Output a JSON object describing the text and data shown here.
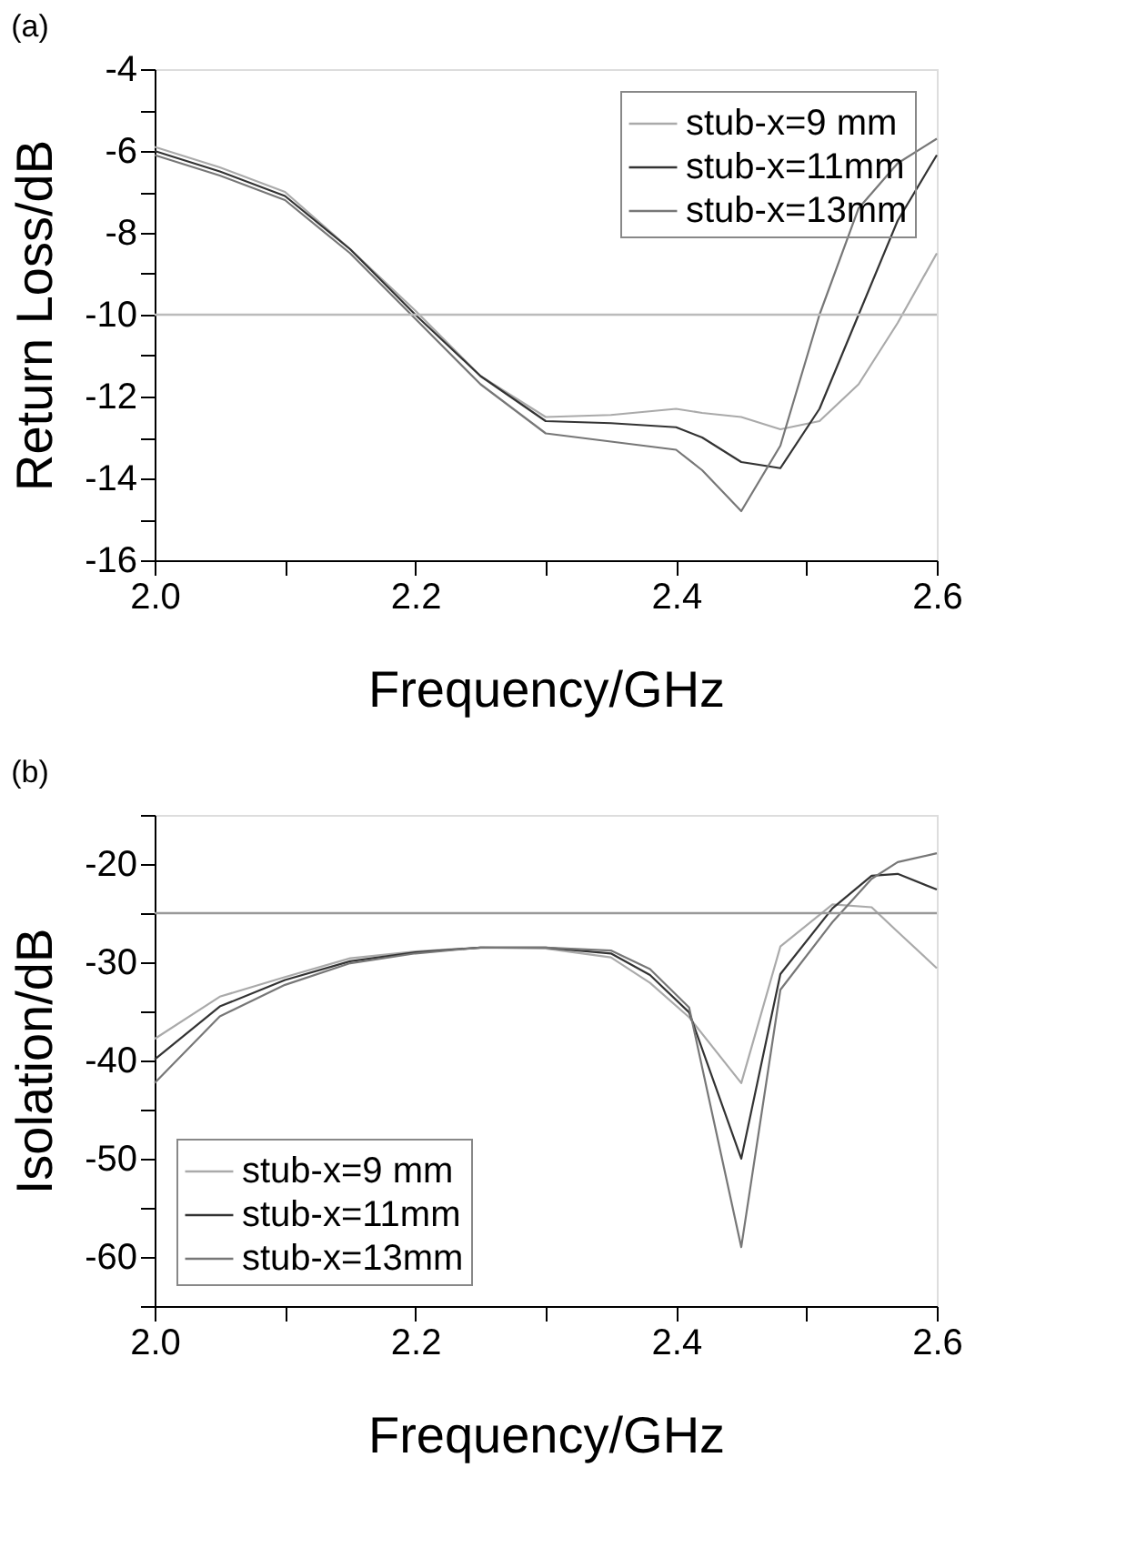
{
  "chart_data": [
    {
      "type": "line",
      "title": "(a)",
      "xlabel": "Frequency/GHz",
      "ylabel": "Return Loss/dB",
      "x": [
        2.0,
        2.05,
        2.1,
        2.15,
        2.2,
        2.25,
        2.3,
        2.35,
        2.4,
        2.42,
        2.45,
        2.48,
        2.51,
        2.54,
        2.57,
        2.6
      ],
      "series": [
        {
          "name": "stub-x=9 mm",
          "color": "#aaaaaa",
          "values": [
            -5.9,
            -6.4,
            -7.0,
            -8.4,
            -9.9,
            -11.5,
            -12.5,
            -12.45,
            -12.3,
            -12.4,
            -12.5,
            -12.8,
            -12.6,
            -11.7,
            -10.2,
            -8.5
          ]
        },
        {
          "name": "stub-x=11mm",
          "color": "#333333",
          "values": [
            -6.0,
            -6.5,
            -7.1,
            -8.4,
            -10.0,
            -11.5,
            -12.6,
            -12.65,
            -12.75,
            -13.0,
            -13.6,
            -13.75,
            -12.3,
            -10.0,
            -7.7,
            -6.1
          ]
        },
        {
          "name": "stub-x=13mm",
          "color": "#777777",
          "values": [
            -6.1,
            -6.6,
            -7.2,
            -8.5,
            -10.1,
            -11.7,
            -12.9,
            -13.1,
            -13.3,
            -13.8,
            -14.8,
            -13.2,
            -10.0,
            -7.4,
            -6.3,
            -5.7
          ]
        }
      ],
      "xlim": [
        2.0,
        2.6
      ],
      "xticks": [
        {
          "value": 2.0,
          "label": "2.0"
        },
        {
          "value": 2.1,
          "label": null
        },
        {
          "value": 2.2,
          "label": "2.2"
        },
        {
          "value": 2.3,
          "label": null
        },
        {
          "value": 2.4,
          "label": "2.4"
        },
        {
          "value": 2.5,
          "label": null
        },
        {
          "value": 2.6,
          "label": "2.6"
        }
      ],
      "ylim": [
        -16,
        -4
      ],
      "yticks": [
        -16,
        {
          "value": -15,
          "label": null
        },
        -14,
        {
          "value": -13,
          "label": null
        },
        -12,
        {
          "value": -11,
          "label": null
        },
        -10,
        {
          "value": -9,
          "label": null
        },
        -8,
        {
          "value": -7,
          "label": null
        },
        -6,
        {
          "value": -5,
          "label": null
        },
        -4
      ],
      "ref_lines": [
        {
          "axis": "y",
          "value": -10,
          "color": "#bbbbbb"
        }
      ],
      "grid": false,
      "legend": "top right",
      "marker": "none",
      "line_style": "solid"
    },
    {
      "type": "line",
      "title": "(b)",
      "xlabel": "Frequency/GHz",
      "ylabel": "Isolation/dB",
      "x": [
        2.0,
        2.05,
        2.1,
        2.15,
        2.2,
        2.25,
        2.3,
        2.35,
        2.38,
        2.41,
        2.45,
        2.48,
        2.52,
        2.55,
        2.57,
        2.6
      ],
      "series": [
        {
          "name": "stub-x=9 mm",
          "color": "#aaaaaa",
          "values": [
            -37.8,
            -33.5,
            -31.5,
            -29.6,
            -28.9,
            -28.5,
            -28.6,
            -29.5,
            -32.1,
            -35.6,
            -42.3,
            -28.4,
            -24.1,
            -24.4,
            -26.9,
            -30.6
          ]
        },
        {
          "name": "stub-x=11mm",
          "color": "#333333",
          "values": [
            -39.9,
            -34.5,
            -31.8,
            -29.9,
            -29.0,
            -28.5,
            -28.5,
            -29.1,
            -31.3,
            -35.1,
            -50.0,
            -31.2,
            -24.5,
            -21.2,
            -21.0,
            -22.6
          ]
        },
        {
          "name": "stub-x=13mm",
          "color": "#777777",
          "values": [
            -42.3,
            -35.5,
            -32.3,
            -30.1,
            -29.1,
            -28.5,
            -28.5,
            -28.8,
            -30.7,
            -34.6,
            -59.0,
            -32.8,
            -25.9,
            -21.5,
            -19.8,
            -18.9
          ]
        }
      ],
      "xlim": [
        2.0,
        2.6
      ],
      "xticks": [
        {
          "value": 2.0,
          "label": "2.0"
        },
        {
          "value": 2.1,
          "label": null
        },
        {
          "value": 2.2,
          "label": "2.2"
        },
        {
          "value": 2.3,
          "label": null
        },
        {
          "value": 2.4,
          "label": "2.4"
        },
        {
          "value": 2.5,
          "label": null
        },
        {
          "value": 2.6,
          "label": "2.6"
        }
      ],
      "ylim": [
        -65,
        -15
      ],
      "yticks": [
        {
          "value": -65,
          "label": null
        },
        -60,
        {
          "value": -55,
          "label": null
        },
        -50,
        {
          "value": -45,
          "label": null
        },
        -40,
        {
          "value": -35,
          "label": null
        },
        -30,
        {
          "value": -25,
          "label": null
        },
        -20,
        {
          "value": -15,
          "label": null
        }
      ],
      "ref_lines": [
        {
          "axis": "y",
          "value": -25,
          "color": "#999999"
        }
      ],
      "grid": false,
      "legend": "bottom left",
      "marker": "none",
      "line_style": "solid"
    }
  ]
}
